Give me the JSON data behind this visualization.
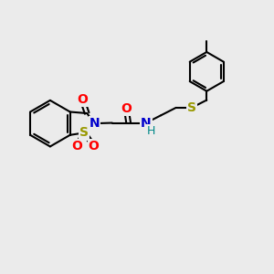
{
  "bg_color": "#ebebeb",
  "bond_width": 1.5,
  "atom_colors": {
    "O": "#ff0000",
    "N": "#0000cc",
    "S_thio": "#999900",
    "S_sulfonyl": "#ffaa00",
    "H": "#008888"
  },
  "font_size": 10,
  "font_size_small": 9
}
